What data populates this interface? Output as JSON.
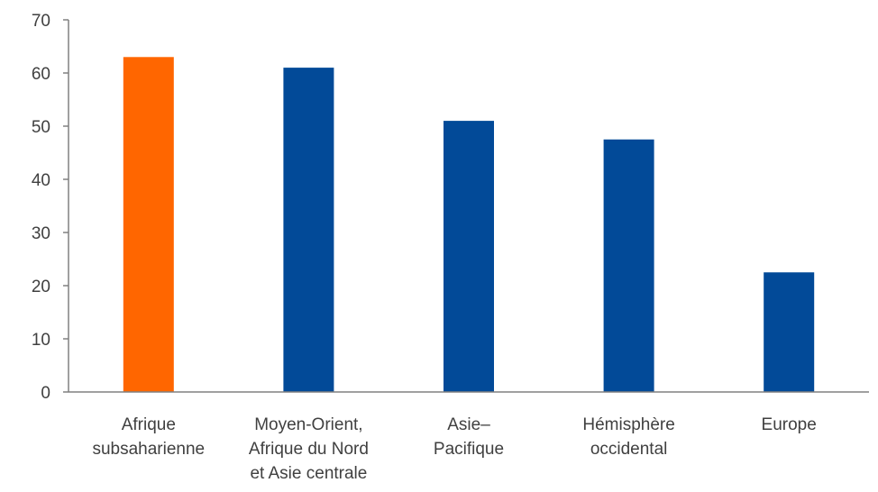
{
  "chart_data": {
    "type": "bar",
    "title": "",
    "xlabel": "",
    "ylabel": "",
    "ylim": [
      0,
      70
    ],
    "yticks": [
      0,
      10,
      20,
      30,
      40,
      50,
      60,
      70
    ],
    "grid": false,
    "legend": "none",
    "categories": [
      [
        "Afrique",
        "subsaharienne"
      ],
      [
        "Moyen-Orient,",
        "Afrique du Nord",
        "et Asie centrale"
      ],
      [
        "Asie–",
        "Pacifique"
      ],
      [
        "Hémisphère",
        "occidental"
      ],
      [
        "Europe"
      ]
    ],
    "values": [
      63,
      61,
      51,
      47.5,
      22.5
    ],
    "colors": [
      "#FF6600",
      "#024A98",
      "#024A98",
      "#024A98",
      "#024A98"
    ],
    "axis_color": "#808080",
    "text_color": "#404040"
  }
}
